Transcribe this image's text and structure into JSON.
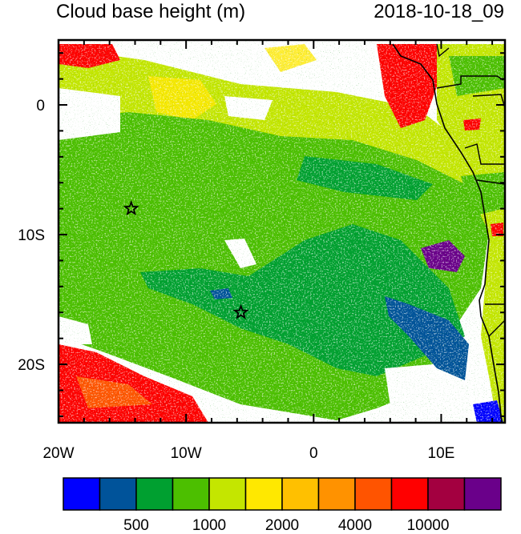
{
  "title_left": "Cloud base height (m)",
  "title_right": "2018-10-18_09",
  "map": {
    "lon_range": [
      -20,
      15
    ],
    "lat_range": [
      -24.5,
      5
    ],
    "x_tick_labels": [
      "20W",
      "10W",
      "0",
      "10E"
    ],
    "y_tick_labels": [
      "0",
      "10S",
      "20S"
    ],
    "markers": [
      {
        "name": "star-marker-1",
        "lon": -14.3,
        "lat": -8.0
      },
      {
        "name": "star-marker-2",
        "lon": -5.7,
        "lat": -16.0
      }
    ]
  },
  "colorbar": {
    "colors": [
      "#0000ff",
      "#00539a",
      "#00a030",
      "#4cbf00",
      "#c4e600",
      "#ffe800",
      "#ffc000",
      "#ff9200",
      "#ff5400",
      "#ff0000",
      "#a30040",
      "#6a008a"
    ],
    "labels": [
      "500",
      "1000",
      "2000",
      "4000",
      "10000"
    ]
  }
}
